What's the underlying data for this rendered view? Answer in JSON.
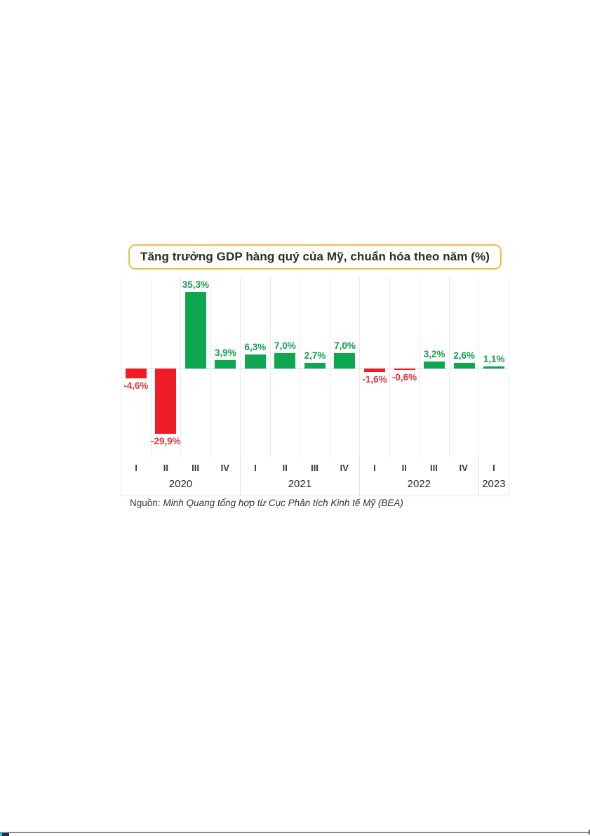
{
  "chart_data": {
    "type": "bar",
    "title": "Tăng trưởng GDP hàng quý của Mỹ, chuẩn hóa theo năm (%)",
    "categories": [
      "I 2020",
      "II 2020",
      "III 2020",
      "IV 2020",
      "I 2021",
      "II 2021",
      "III 2021",
      "IV 2021",
      "I 2022",
      "II 2022",
      "III 2022",
      "IV 2022",
      "I 2023"
    ],
    "values": [
      -4.6,
      -29.9,
      35.3,
      3.9,
      6.3,
      7.0,
      2.7,
      7.0,
      -1.6,
      -0.6,
      3.2,
      2.6,
      1.1
    ],
    "value_labels": [
      "-4,6%",
      "-29,9%",
      "35,3%",
      "3,9%",
      "6,3%",
      "7,0%",
      "2,7%",
      "7,0%",
      "-1,6%",
      "-0,6%",
      "3,2%",
      "2,6%",
      "1,1%"
    ],
    "quarter_labels": [
      "I",
      "II",
      "III",
      "IV",
      "I",
      "II",
      "III",
      "IV",
      "I",
      "II",
      "III",
      "IV",
      "I"
    ],
    "year_groups": [
      {
        "label": "2020",
        "count": 4
      },
      {
        "label": "2021",
        "count": 4
      },
      {
        "label": "2022",
        "count": 4
      },
      {
        "label": "2023",
        "count": 1
      }
    ],
    "xlabel": "",
    "ylabel": "",
    "ylim": [
      -32,
      38
    ],
    "grid": "vertical-only",
    "legend": "none",
    "colors": {
      "bar_positive": "#0da750",
      "bar_negative": "#ee1c25",
      "label_positive": "#149e4c",
      "label_negative": "#e8343c",
      "gridline": "#eaeaea",
      "zero_line": "#dcdcdc",
      "title_border": "#e6c14e"
    },
    "source_prefix": "Nguồn:",
    "source_body": "Minh Quang tổng hợp từ Cục Phân tích Kinh tế Mỹ (BEA)"
  },
  "page_chrome": {
    "bottom_divider_color": "#8a8a8a",
    "bottom_left_mark_color": "#1d2b4b",
    "bottom_left_accent_color": "#3cc5da"
  }
}
